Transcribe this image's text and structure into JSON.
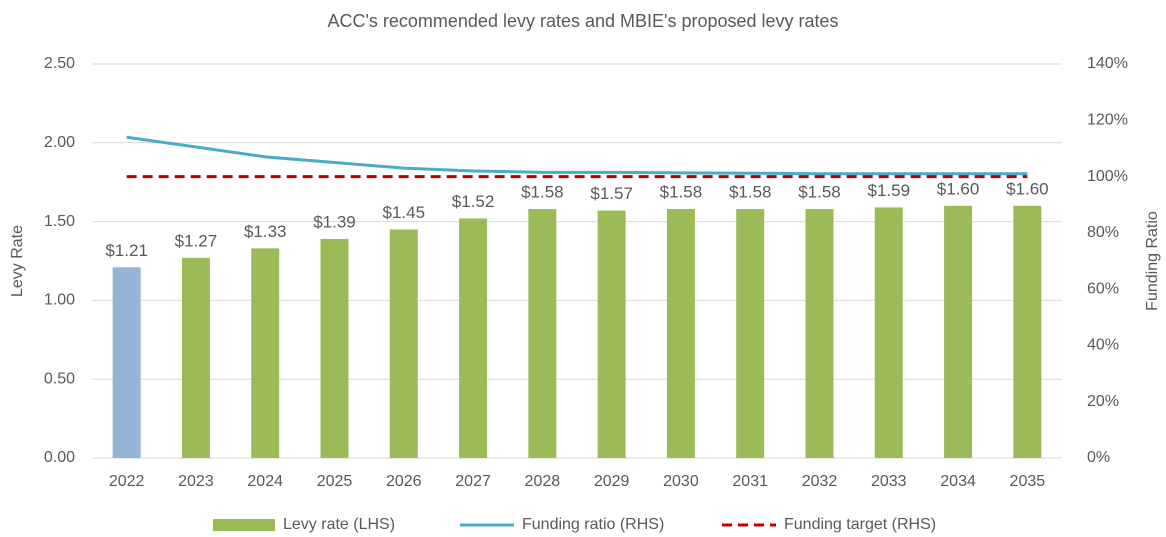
{
  "chart_data": {
    "type": "bar",
    "title": "ACC's recommended levy rates and MBIE's proposed levy rates",
    "ylabel": "Levy Rate",
    "y2label": "Funding Ratio",
    "categories": [
      "2022",
      "2023",
      "2024",
      "2025",
      "2026",
      "2027",
      "2028",
      "2029",
      "2030",
      "2031",
      "2032",
      "2033",
      "2034",
      "2035"
    ],
    "series": [
      {
        "name": "Levy rate (LHS)",
        "type": "bar",
        "color": "#9bbb59",
        "colors": [
          "#95b3d7",
          "#9bbb59",
          "#9bbb59",
          "#9bbb59",
          "#9bbb59",
          "#9bbb59",
          "#9bbb59",
          "#9bbb59",
          "#9bbb59",
          "#9bbb59",
          "#9bbb59",
          "#9bbb59",
          "#9bbb59",
          "#9bbb59"
        ],
        "values": [
          1.21,
          1.27,
          1.33,
          1.39,
          1.45,
          1.52,
          1.58,
          1.57,
          1.58,
          1.58,
          1.58,
          1.59,
          1.6,
          1.6
        ],
        "value_labels": [
          "$1.21",
          "$1.27",
          "$1.33",
          "$1.39",
          "$1.45",
          "$1.52",
          "$1.58",
          "$1.57",
          "$1.58",
          "$1.58",
          "$1.58",
          "$1.59",
          "$1.60",
          "$1.60"
        ]
      },
      {
        "name": "Funding ratio (RHS)",
        "type": "line",
        "axis": "y2",
        "color": "#4bacc6",
        "line_style": "solid",
        "values": [
          114,
          110.5,
          107,
          105,
          103,
          102,
          101.5,
          101.5,
          101.3,
          101.2,
          101,
          101,
          101,
          101
        ]
      },
      {
        "name": "Funding target (RHS)",
        "type": "line",
        "axis": "y2",
        "color": "#c00000",
        "line_style": "dashed",
        "values": [
          100,
          100,
          100,
          100,
          100,
          100,
          100,
          100,
          100,
          100,
          100,
          100,
          100,
          100
        ]
      }
    ],
    "ylim": [
      0,
      2.5
    ],
    "yticks": [
      {
        "value": 0,
        "label": "0.00"
      },
      {
        "value": 0.5,
        "label": "0.50"
      },
      {
        "value": 1,
        "label": "1.00"
      },
      {
        "value": 1.5,
        "label": "1.50"
      },
      {
        "value": 2,
        "label": "2.00"
      },
      {
        "value": 2.5,
        "label": "2.50"
      }
    ],
    "y2lim": [
      0,
      140
    ],
    "y2ticks": [
      {
        "value": 0,
        "label": "0%"
      },
      {
        "value": 20,
        "label": "20%"
      },
      {
        "value": 40,
        "label": "40%"
      },
      {
        "value": 60,
        "label": "60%"
      },
      {
        "value": 80,
        "label": "80%"
      },
      {
        "value": 100,
        "label": "100%"
      },
      {
        "value": 120,
        "label": "120%"
      },
      {
        "value": 140,
        "label": "140%"
      }
    ],
    "grid": true,
    "legend": "bottom"
  }
}
